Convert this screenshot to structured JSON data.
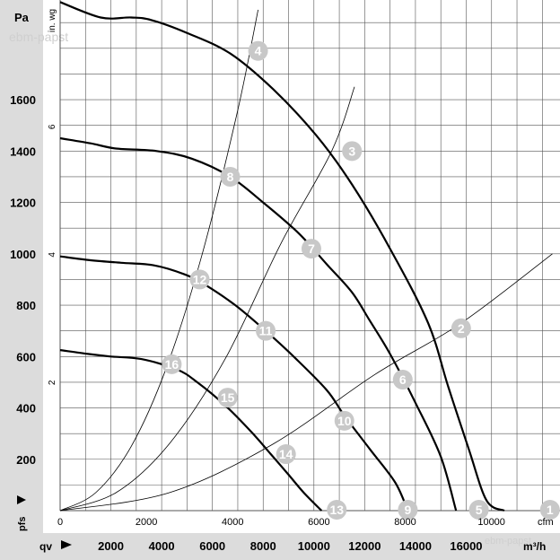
{
  "chart_data": {
    "type": "line",
    "colors": {
      "panel": "#dcdcdc",
      "grid": "#555555",
      "curve": "#000000",
      "marker": "#c8c8c8",
      "marker_text": "#ffffff",
      "text": "#000000",
      "watermark": "#cfcfcf"
    },
    "y_left": {
      "unit": "Pa",
      "ticks": [
        200,
        400,
        600,
        800,
        1000,
        1200,
        1400,
        1600
      ],
      "range": [
        0,
        1980
      ],
      "axis_symbol": "pfs"
    },
    "y_inner": {
      "unit": "in. wg",
      "ticks": [
        2,
        4,
        6
      ],
      "range": [
        0,
        7.949
      ]
    },
    "x_top": {
      "unit": "cfm",
      "ticks": [
        0,
        2000,
        4000,
        6000,
        8000,
        10000
      ],
      "range": [
        0,
        11650
      ]
    },
    "x_bottom": {
      "unit": "m³/h",
      "ticks": [
        2000,
        4000,
        6000,
        8000,
        10000,
        12000,
        14000,
        16000
      ],
      "range": [
        0,
        19800
      ],
      "axis_symbol": "qv"
    },
    "grid": true,
    "watermark": "ebm-papst",
    "fan_curves": [
      {
        "points": [
          [
            0,
            1980
          ],
          [
            1600,
            1920
          ],
          [
            2800,
            1920
          ],
          [
            3600,
            1910
          ],
          [
            5000,
            1860
          ],
          [
            6700,
            1780
          ],
          [
            8400,
            1640
          ],
          [
            10100,
            1460
          ],
          [
            11500,
            1270
          ],
          [
            13000,
            1020
          ],
          [
            14500,
            730
          ],
          [
            15300,
            480
          ],
          [
            16100,
            240
          ],
          [
            16800,
            40
          ],
          [
            17500,
            0
          ]
        ]
      },
      {
        "points": [
          [
            0,
            1450
          ],
          [
            1200,
            1430
          ],
          [
            2200,
            1410
          ],
          [
            3800,
            1400
          ],
          [
            5200,
            1370
          ],
          [
            6700,
            1300
          ],
          [
            8000,
            1200
          ],
          [
            9400,
            1080
          ],
          [
            10500,
            960
          ],
          [
            11500,
            850
          ],
          [
            12200,
            740
          ],
          [
            13000,
            610
          ],
          [
            14000,
            420
          ],
          [
            15000,
            210
          ],
          [
            15600,
            0
          ]
        ]
      },
      {
        "points": [
          [
            0,
            990
          ],
          [
            1200,
            975
          ],
          [
            2400,
            965
          ],
          [
            3700,
            955
          ],
          [
            4900,
            920
          ],
          [
            5700,
            880
          ],
          [
            6900,
            800
          ],
          [
            8100,
            700
          ],
          [
            9200,
            600
          ],
          [
            10500,
            470
          ],
          [
            11200,
            370
          ],
          [
            12200,
            240
          ],
          [
            13200,
            110
          ],
          [
            13700,
            0
          ]
        ]
      },
      {
        "points": [
          [
            0,
            625
          ],
          [
            1100,
            610
          ],
          [
            2000,
            600
          ],
          [
            3200,
            590
          ],
          [
            4600,
            550
          ],
          [
            5400,
            500
          ],
          [
            6500,
            410
          ],
          [
            7500,
            310
          ],
          [
            8300,
            220
          ],
          [
            9000,
            140
          ],
          [
            9600,
            70
          ],
          [
            10300,
            0
          ]
        ]
      }
    ],
    "system_curves": [
      {
        "points": [
          [
            0,
            0
          ],
          [
            1400,
            70
          ],
          [
            2800,
            250
          ],
          [
            4200,
            560
          ],
          [
            5600,
            1000
          ],
          [
            7000,
            1560
          ],
          [
            7800,
            1950
          ]
        ]
      },
      {
        "points": [
          [
            0,
            0
          ],
          [
            2200,
            70
          ],
          [
            4300,
            260
          ],
          [
            6500,
            590
          ],
          [
            8700,
            1040
          ],
          [
            10700,
            1400
          ],
          [
            11600,
            1650
          ]
        ]
      },
      {
        "points": [
          [
            0,
            0
          ],
          [
            4300,
            70
          ],
          [
            8400,
            260
          ],
          [
            12400,
            530
          ],
          [
            15800,
            730
          ],
          [
            19400,
            1000
          ]
        ]
      }
    ],
    "operating_points": [
      {
        "label": "1",
        "x": 19300,
        "y": 0
      },
      {
        "label": "2",
        "x": 15800,
        "y": 710
      },
      {
        "label": "3",
        "x": 11500,
        "y": 1400
      },
      {
        "label": "4",
        "x": 7800,
        "y": 1790
      },
      {
        "label": "5",
        "x": 16500,
        "y": 0
      },
      {
        "label": "6",
        "x": 13500,
        "y": 510
      },
      {
        "label": "7",
        "x": 9900,
        "y": 1020
      },
      {
        "label": "8",
        "x": 6700,
        "y": 1300
      },
      {
        "label": "9",
        "x": 13700,
        "y": 0
      },
      {
        "label": "10",
        "x": 11200,
        "y": 350
      },
      {
        "label": "11",
        "x": 8100,
        "y": 700
      },
      {
        "label": "12",
        "x": 5500,
        "y": 900
      },
      {
        "label": "13",
        "x": 10900,
        "y": 0
      },
      {
        "label": "14",
        "x": 8900,
        "y": 220
      },
      {
        "label": "15",
        "x": 6600,
        "y": 440
      },
      {
        "label": "16",
        "x": 4400,
        "y": 570
      }
    ]
  }
}
